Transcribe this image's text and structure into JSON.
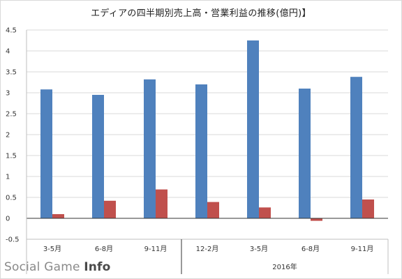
{
  "chart_data": {
    "type": "bar",
    "title": "エディアの四半期別売上高・営業利益の推移(億円)】",
    "categories": [
      "3-5月",
      "6-8月",
      "9-11月",
      "12-2月",
      "3-5月",
      "6-8月",
      "9-11月"
    ],
    "year_group": {
      "label": "2016年",
      "start_index": 3,
      "end_index": 6
    },
    "series": [
      {
        "values": [
          3.08,
          2.95,
          3.32,
          3.2,
          4.25,
          3.1,
          3.38
        ],
        "color": "#4F81BD"
      },
      {
        "values": [
          0.1,
          0.42,
          0.69,
          0.39,
          0.26,
          -0.06,
          0.45
        ],
        "color": "#C0504D"
      }
    ],
    "yticks": [
      "4.5",
      "4",
      "3.5",
      "3",
      "2.5",
      "2",
      "1.5",
      "1",
      "0.5",
      "0",
      "-0.5"
    ],
    "ylim": [
      -0.5,
      4.5
    ],
    "grid": true,
    "legend": "none"
  },
  "watermark": {
    "part1": "Social Game ",
    "part2": "Info"
  }
}
